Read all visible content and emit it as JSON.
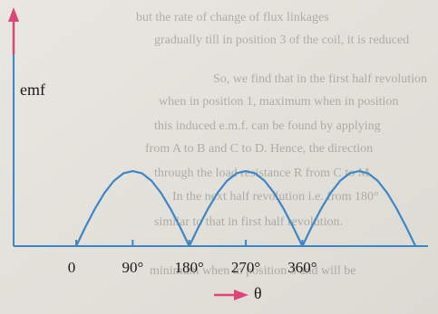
{
  "chart_data": {
    "type": "line",
    "background_text": [
      "but the rate of change of flux linkages",
      "gradually till in position 3 of the coil, it is reduced",
      "So, we find that in the first half revolution",
      "when in position 1, maximum when in position",
      "this induced e.m.f. can be found by applying",
      "from A to B and C to D. Hence, the direction",
      "through the load resistance R from C to M",
      "In the next half revolution i.e. from 180°",
      "similar to that in first half revolution.",
      "minimum when in position 3 and will be"
    ],
    "y_label": "emf",
    "x_label": "θ",
    "x": [
      0,
      15,
      30,
      45,
      60,
      75,
      90,
      105,
      120,
      135,
      150,
      165,
      180,
      195,
      210,
      225,
      240,
      255,
      270,
      285,
      300,
      315,
      330,
      345,
      360,
      375,
      390,
      405,
      420,
      435,
      450,
      465,
      480,
      495,
      510,
      525,
      540
    ],
    "series": [
      {
        "color": "#3d86c6",
        "values": [
          0,
          0.26,
          0.5,
          0.71,
          0.87,
          0.97,
          1,
          0.97,
          0.87,
          0.71,
          0.5,
          0.26,
          0,
          0.26,
          0.5,
          0.71,
          0.87,
          0.97,
          1,
          0.97,
          0.87,
          0.71,
          0.5,
          0.26,
          0,
          0.26,
          0.5,
          0.71,
          0.87,
          0.97,
          1,
          0.97,
          0.87,
          0.71,
          0.5,
          0.26,
          0
        ]
      }
    ],
    "xlim": [
      0,
      560
    ],
    "ylim": [
      0,
      3.1
    ],
    "xticks": [
      0,
      {
        "value": 90,
        "label": "90°"
      },
      {
        "value": 180,
        "label": "180°"
      },
      {
        "value": 270,
        "label": "270°"
      },
      {
        "value": 360,
        "label": "360°"
      }
    ],
    "axis_color": "#3d86c6",
    "arrow_color": "#e0457a"
  }
}
